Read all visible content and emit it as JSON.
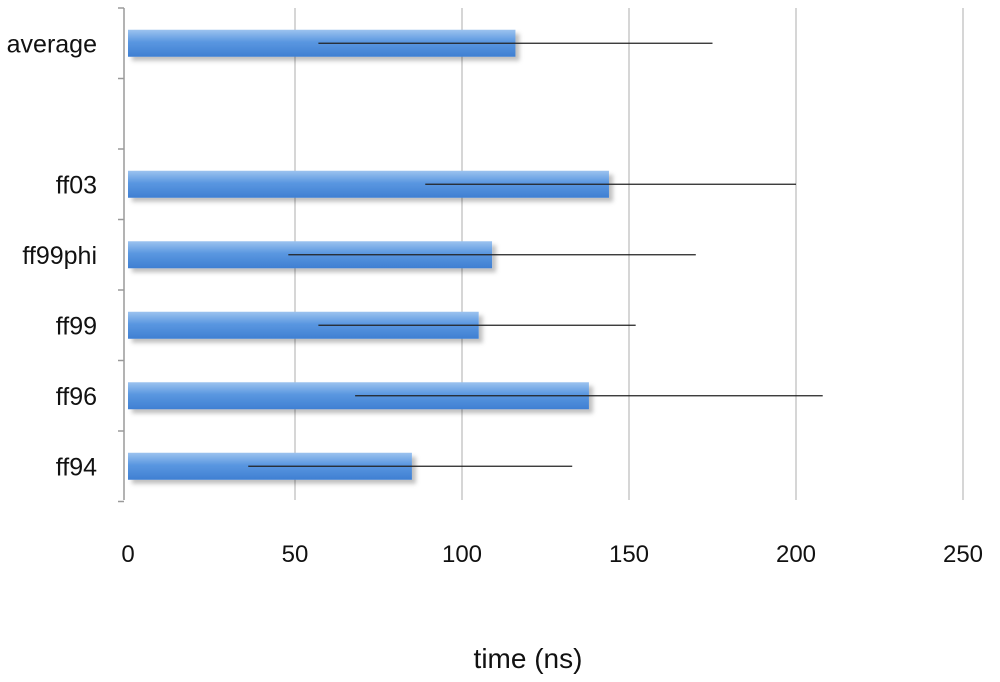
{
  "chart_data": {
    "type": "bar",
    "orientation": "horizontal",
    "categories": [
      "average",
      "",
      "ff03",
      "ff99phi",
      "ff99",
      "ff96",
      "ff94"
    ],
    "values": [
      116,
      null,
      144,
      109,
      105,
      138,
      85
    ],
    "error_low": [
      57,
      null,
      89,
      48,
      57,
      68,
      36
    ],
    "error_high": [
      175,
      null,
      200,
      170,
      152,
      208,
      133
    ],
    "xlabel": "time (ns)",
    "xlim": [
      0,
      250
    ],
    "xticks": [
      0,
      50,
      100,
      150,
      200,
      250
    ],
    "xtick_labels": [
      "0",
      "50",
      "100",
      "150",
      "200",
      "250"
    ],
    "grid": "vertical",
    "legend": "none",
    "colors": {
      "bar_top": "#9cc3ef",
      "bar_mid": "#5a97e0",
      "bar_bottom": "#3f7fd2",
      "error_bar": "#222222",
      "grid": "#c8c8c8",
      "axis": "#9a9a9a"
    }
  }
}
